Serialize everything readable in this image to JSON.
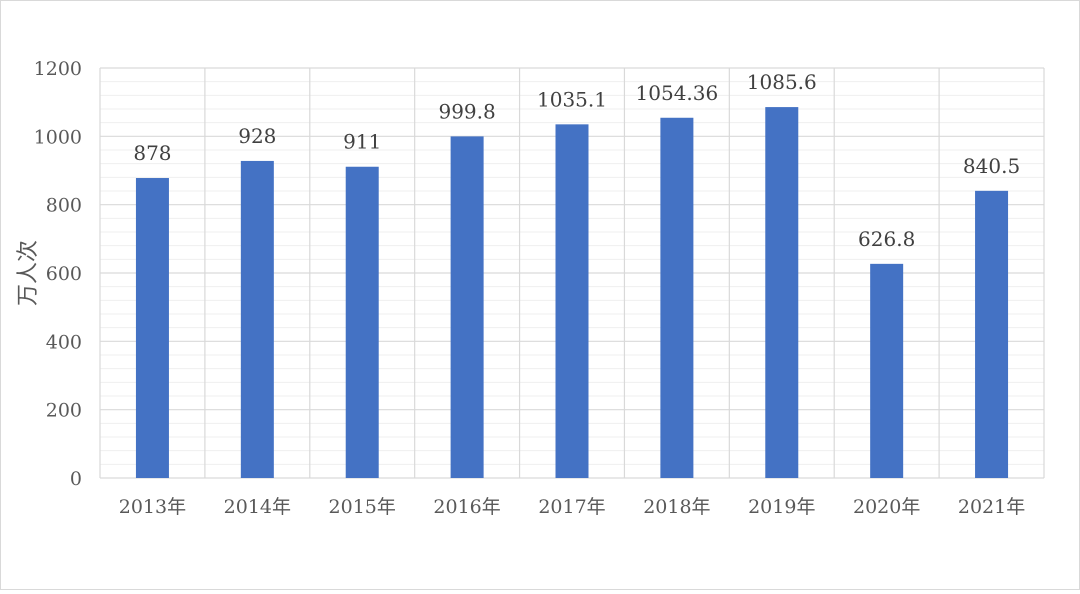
{
  "chart_data": {
    "type": "bar",
    "categories": [
      "2013年",
      "2014年",
      "2015年",
      "2016年",
      "2017年",
      "2018年",
      "2019年",
      "2020年",
      "2021年"
    ],
    "values": [
      878,
      928,
      911,
      999.8,
      1035.1,
      1054.36,
      1085.6,
      626.8,
      840.5
    ],
    "data_labels": [
      "878",
      "928",
      "911",
      "999.8",
      "1035.1",
      "1054.36",
      "1085.6",
      "626.8",
      "840.5"
    ],
    "ylabel": "万人次",
    "ylim": [
      0,
      1200
    ],
    "yticks": [
      "0",
      "200",
      "400",
      "600",
      "800",
      "1000",
      "1200"
    ],
    "bar_color": "#4472C4",
    "grid": true
  }
}
